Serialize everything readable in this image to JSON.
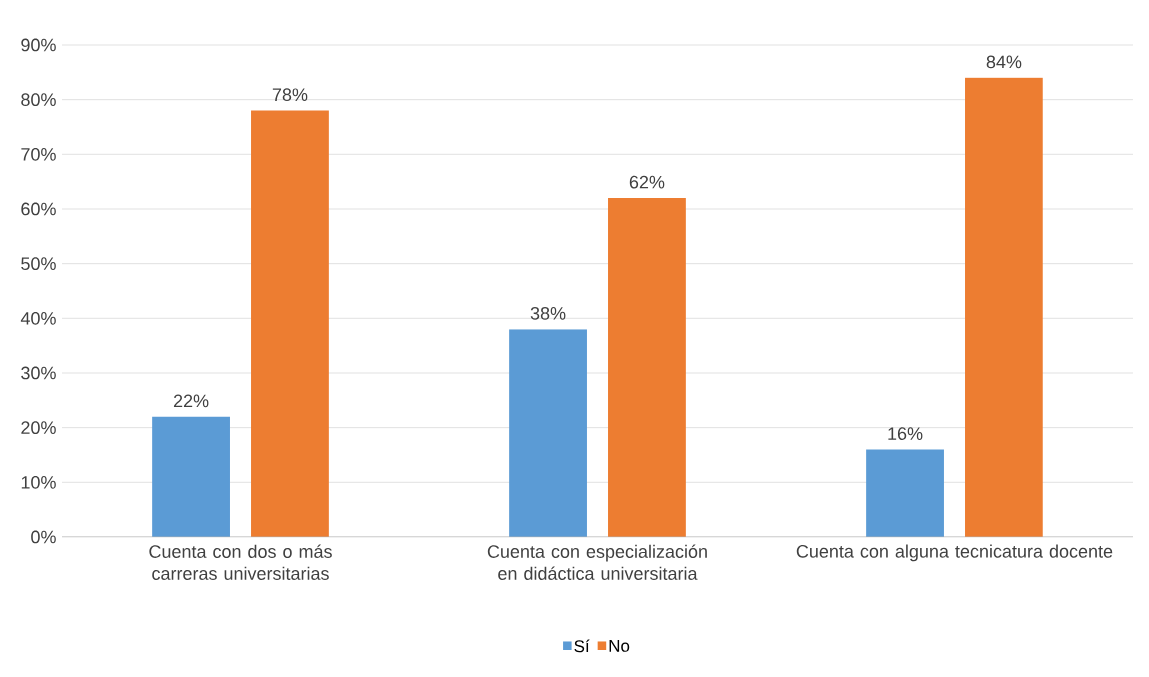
{
  "chart_data": {
    "type": "bar",
    "categories": [
      "Cuenta con dos o más carreras universitarias",
      "Cuenta con especialización en didáctica universitaria",
      "Cuenta con alguna tecnicatura docente"
    ],
    "series": [
      {
        "name": "Sí",
        "color": "#5b9bd5",
        "values": [
          22,
          38,
          16
        ],
        "value_labels": [
          "22%",
          "38%",
          "16%"
        ]
      },
      {
        "name": "No",
        "color": "#ed7d31",
        "values": [
          78,
          62,
          84
        ],
        "value_labels": [
          "78%",
          "62%",
          "84%"
        ]
      }
    ],
    "ylim": [
      0,
      90
    ],
    "yticks": [
      {
        "value": 0,
        "label": "0%"
      },
      {
        "value": 10,
        "label": "10%"
      },
      {
        "value": 20,
        "label": "20%"
      },
      {
        "value": 30,
        "label": "30%"
      },
      {
        "value": 40,
        "label": "40%"
      },
      {
        "value": 50,
        "label": "50%"
      },
      {
        "value": 60,
        "label": "60%"
      },
      {
        "value": 70,
        "label": "70%"
      },
      {
        "value": 80,
        "label": "80%"
      },
      {
        "value": 90,
        "label": "90%"
      }
    ],
    "grid": "y",
    "legend": "bottom"
  }
}
